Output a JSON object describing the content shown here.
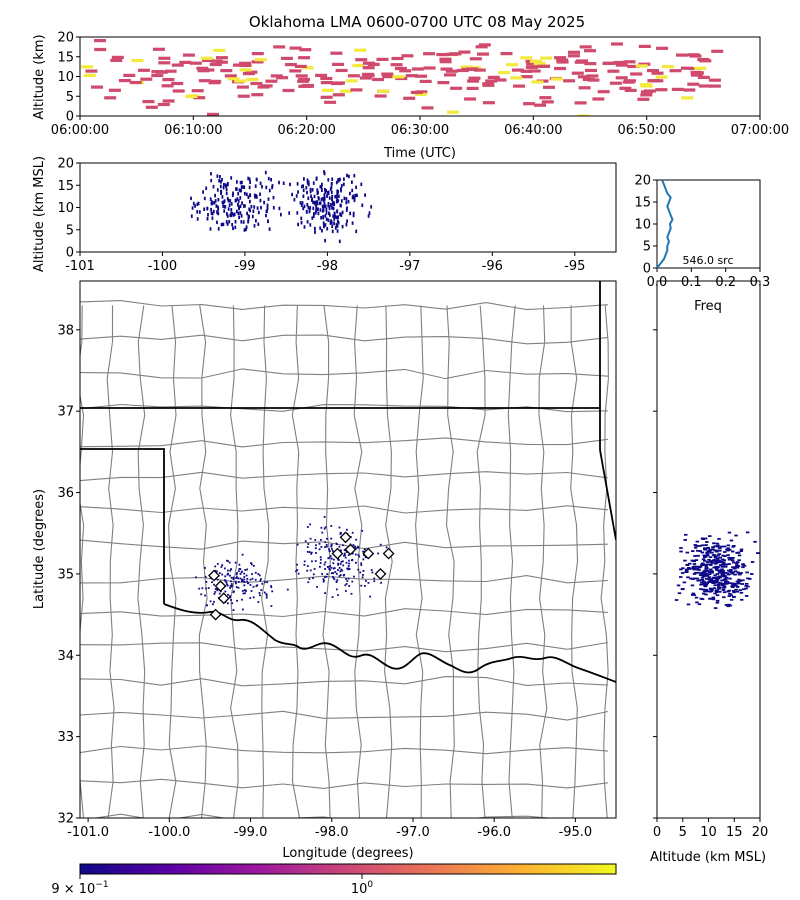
{
  "chart_data": [
    {
      "panel": "time-height",
      "type": "heatmap",
      "title": "Oklahoma LMA 0600-0700 UTC 08 May 2025",
      "xlabel": "Time (UTC)",
      "ylabel": "Altitude (km)",
      "xlim": [
        "06:00:00",
        "07:00:00"
      ],
      "x_ticks": [
        "06:00:00",
        "06:10:00",
        "06:20:00",
        "06:30:00",
        "06:40:00",
        "06:50:00",
        "07:00:00"
      ],
      "ylim": [
        0,
        20
      ],
      "y_ticks": [
        "0",
        "5",
        "10",
        "15",
        "20"
      ],
      "colormap": [
        "#0d0887",
        "#7e03a8",
        "#cc4778",
        "#f89540",
        "#f0f921"
      ],
      "dominant_color": "#cf4a6d",
      "highlight_color": "#f3ea3d"
    },
    {
      "panel": "longitude-altitude",
      "type": "scatter",
      "xlabel": "",
      "ylabel": "Altitude (km MSL)",
      "xlim": [
        -101,
        -94.5
      ],
      "x_ticks": [
        "-101",
        "-100",
        "-99",
        "-98",
        "-97",
        "-96",
        "-95"
      ],
      "ylim": [
        0,
        20
      ],
      "y_ticks": [
        "0",
        "5",
        "10",
        "15",
        "20"
      ],
      "point_color": "#0d0887"
    },
    {
      "panel": "altitude-histogram",
      "type": "line",
      "xlabel": "Freq",
      "xlim": [
        0,
        0.3
      ],
      "x_ticks": [
        "0.0",
        "0.1",
        "0.2",
        "0.3"
      ],
      "ylim": [
        0,
        20
      ],
      "y_ticks": [
        "0",
        "5",
        "10",
        "15",
        "20"
      ],
      "annotation": "546.0 src",
      "line_color": "#1f77b4",
      "profile": [
        {
          "alt": 0,
          "freq": 0.0
        },
        {
          "alt": 1,
          "freq": 0.01
        },
        {
          "alt": 2,
          "freq": 0.02
        },
        {
          "alt": 3,
          "freq": 0.025
        },
        {
          "alt": 4,
          "freq": 0.03
        },
        {
          "alt": 5,
          "freq": 0.03
        },
        {
          "alt": 6,
          "freq": 0.035
        },
        {
          "alt": 7,
          "freq": 0.03
        },
        {
          "alt": 8,
          "freq": 0.035
        },
        {
          "alt": 9,
          "freq": 0.04
        },
        {
          "alt": 10,
          "freq": 0.038
        },
        {
          "alt": 11,
          "freq": 0.045
        },
        {
          "alt": 12,
          "freq": 0.04
        },
        {
          "alt": 13,
          "freq": 0.035
        },
        {
          "alt": 14,
          "freq": 0.03
        },
        {
          "alt": 15,
          "freq": 0.035
        },
        {
          "alt": 16,
          "freq": 0.04
        },
        {
          "alt": 17,
          "freq": 0.03
        },
        {
          "alt": 18,
          "freq": 0.025
        },
        {
          "alt": 19,
          "freq": 0.02
        },
        {
          "alt": 20,
          "freq": 0.015
        }
      ]
    },
    {
      "panel": "plan-view-map",
      "type": "scatter",
      "xlabel": "Longitude (degrees)",
      "ylabel": "Latitude (degrees)",
      "xlim": [
        -101.1,
        -94.5
      ],
      "x_ticks": [
        "-101.0",
        "-100.0",
        "-99.0",
        "-98.0",
        "-97.0",
        "-96.0",
        "-95.0"
      ],
      "ylim": [
        32,
        38.6
      ],
      "y_ticks": [
        "32",
        "33",
        "34",
        "35",
        "36",
        "37",
        "38"
      ],
      "point_color": "#0d0887",
      "stations": [
        {
          "lon": -99.45,
          "lat": 34.98
        },
        {
          "lon": -99.37,
          "lat": 34.85
        },
        {
          "lon": -99.33,
          "lat": 34.7
        },
        {
          "lon": -99.43,
          "lat": 34.5
        },
        {
          "lon": -97.83,
          "lat": 35.45
        },
        {
          "lon": -97.93,
          "lat": 35.25
        },
        {
          "lon": -97.77,
          "lat": 35.3
        },
        {
          "lon": -97.55,
          "lat": 35.25
        },
        {
          "lon": -97.3,
          "lat": 35.25
        },
        {
          "lon": -97.4,
          "lat": 35.0
        }
      ]
    },
    {
      "panel": "altitude-latitude",
      "type": "scatter",
      "xlabel": "Altitude (km MSL)",
      "xlim": [
        0,
        20
      ],
      "x_ticks": [
        "0",
        "5",
        "10",
        "15",
        "20"
      ],
      "ylim": [
        32,
        38.6
      ],
      "point_color": "#0d0887"
    },
    {
      "panel": "colorbar",
      "type": "heatmap",
      "scale": "log",
      "tick_labels": [
        "9 × 10",
        "−1",
        "10",
        "0"
      ],
      "colormap": [
        "#0d0887",
        "#5c01a6",
        "#9c179e",
        "#cc4778",
        "#ed7953",
        "#fdb42f",
        "#f0f921"
      ]
    }
  ]
}
